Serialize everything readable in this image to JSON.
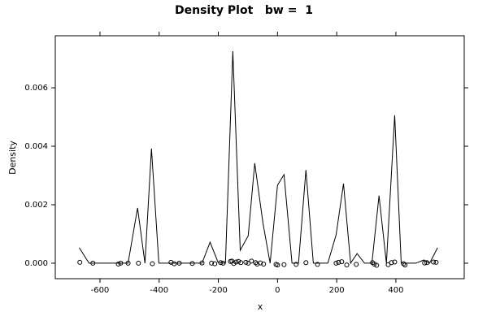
{
  "chart_data": {
    "type": "line",
    "title": "Density Plot   bw =  1",
    "x_label": "x",
    "y_label": "Density",
    "xlim": [
      -751,
      631
    ],
    "ylim": [
      -0.00053,
      0.00778
    ],
    "xticks": [
      -600,
      -400,
      -200,
      0,
      200,
      400
    ],
    "yticks": [
      {
        "value": 0,
        "label": "0.000"
      },
      0.002,
      0.004,
      0.006
    ],
    "series": [
      {
        "type": "line",
        "color": "#000000",
        "x": [
          -670,
          -637,
          -593,
          -505,
          -473,
          -448,
          -426,
          -401,
          -255,
          -228,
          -201,
          -176,
          -151,
          -126,
          -99,
          -77,
          -49,
          -25,
          0,
          22,
          49,
          71,
          96,
          121,
          170,
          198,
          223,
          247,
          269,
          294,
          319,
          343,
          368,
          396,
          418,
          467,
          495,
          514,
          541
        ],
        "values": [
          0.00053,
          0,
          0,
          0,
          0.00189,
          0,
          0.00392,
          0,
          0,
          0.00072,
          3e-05,
          0,
          0.00725,
          0.00044,
          0.00094,
          0.00342,
          0.00136,
          0,
          0.00267,
          0.00303,
          0,
          0,
          0.00319,
          0,
          0,
          0.00097,
          0.00272,
          0,
          0.00033,
          0,
          0,
          0.00231,
          0,
          0.00506,
          0,
          0,
          0.00011,
          0,
          0.00053
        ]
      },
      {
        "type": "scatter",
        "color": "#000000",
        "x": [
          -668,
          -624,
          -538,
          -530,
          -505,
          -470,
          -423,
          -360,
          -349,
          -332,
          -288,
          -255,
          -223,
          -212,
          -192,
          -184,
          -159,
          -154,
          -148,
          -140,
          -132,
          -124,
          -107,
          -99,
          -88,
          -74,
          -69,
          -58,
          -47,
          -5,
          0,
          22,
          63,
          96,
          135,
          198,
          206,
          217,
          234,
          266,
          321,
          327,
          335,
          374,
          385,
          396,
          426,
          431,
          497,
          505,
          527,
          536
        ],
        "values": [
          3e-05,
          0,
          -3e-05,
          0,
          0,
          0,
          -2e-05,
          3e-05,
          -2e-05,
          0,
          -1e-05,
          1e-05,
          0,
          -2e-05,
          2e-05,
          0,
          6e-05,
          7e-05,
          -1e-05,
          4e-05,
          6e-05,
          2e-05,
          3e-05,
          0,
          7e-05,
          2e-05,
          -3e-05,
          1e-05,
          -3e-05,
          -4e-05,
          -6e-05,
          -5e-05,
          -4e-05,
          2e-05,
          -4e-05,
          0,
          3e-05,
          5e-05,
          -6e-05,
          -4e-05,
          2e-05,
          -3e-05,
          -7e-05,
          -5e-05,
          2e-05,
          4e-05,
          -2e-05,
          -6e-05,
          1e-05,
          2e-05,
          4e-05,
          3e-05
        ]
      }
    ]
  }
}
